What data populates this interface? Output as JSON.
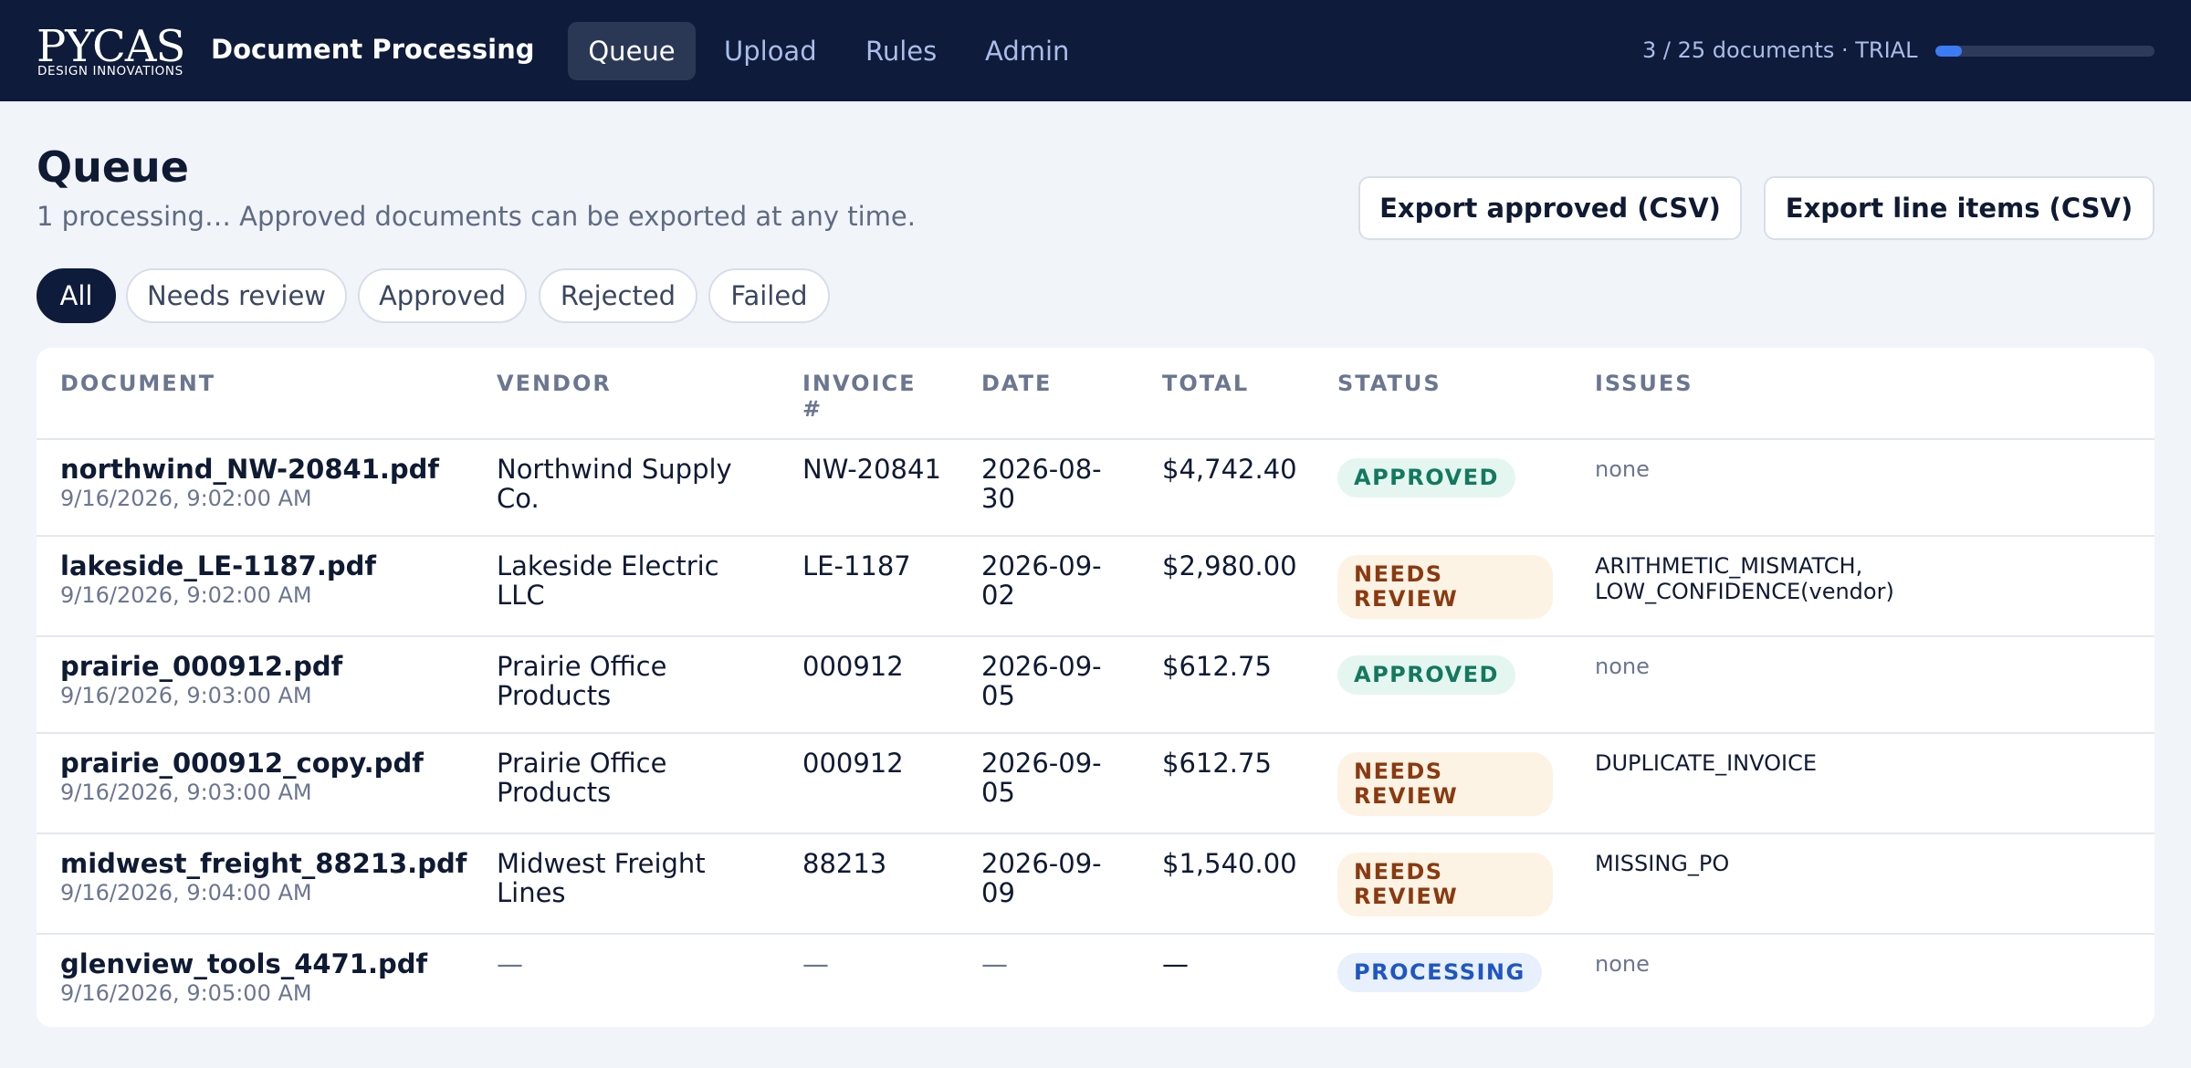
{
  "header": {
    "logo": {
      "wordmark": "PYCAS",
      "tagline": "DESIGN INNOVATIONS"
    },
    "app_title": "Document Processing",
    "nav": [
      {
        "label": "Queue",
        "active": true
      },
      {
        "label": "Upload",
        "active": false
      },
      {
        "label": "Rules",
        "active": false
      },
      {
        "label": "Admin",
        "active": false
      }
    ],
    "usage": {
      "text": "3 / 25 documents · TRIAL",
      "used": 3,
      "limit": 25,
      "fill_fraction": 0.12
    }
  },
  "page": {
    "title": "Queue",
    "subtitle": "1 processing… Approved documents can be exported at any time.",
    "actions": {
      "export_approved": "Export approved (CSV)",
      "export_line_items": "Export line items (CSV)"
    }
  },
  "filters": [
    {
      "label": "All",
      "active": true
    },
    {
      "label": "Needs review",
      "active": false
    },
    {
      "label": "Approved",
      "active": false
    },
    {
      "label": "Rejected",
      "active": false
    },
    {
      "label": "Failed",
      "active": false
    }
  ],
  "table": {
    "columns": {
      "document": "DOCUMENT",
      "vendor": "VENDOR",
      "invoice": "INVOICE #",
      "date": "DATE",
      "total": "TOTAL",
      "status": "STATUS",
      "issues": "ISSUES"
    },
    "rows": [
      {
        "file": "northwind_NW-20841.pdf",
        "uploaded": "9/16/2026, 9:02:00 AM",
        "vendor": "Northwind Supply Co.",
        "invoice": "NW-20841",
        "date": "2026-08-30",
        "total": "$4,742.40",
        "status": "APPROVED",
        "issues": "none"
      },
      {
        "file": "lakeside_LE-1187.pdf",
        "uploaded": "9/16/2026, 9:02:00 AM",
        "vendor": "Lakeside Electric LLC",
        "invoice": "LE-1187",
        "date": "2026-09-02",
        "total": "$2,980.00",
        "status": "NEEDS REVIEW",
        "issues": "ARITHMETIC_MISMATCH, LOW_CONFIDENCE(vendor)"
      },
      {
        "file": "prairie_000912.pdf",
        "uploaded": "9/16/2026, 9:03:00 AM",
        "vendor": "Prairie Office Products",
        "invoice": "000912",
        "date": "2026-09-05",
        "total": "$612.75",
        "status": "APPROVED",
        "issues": "none"
      },
      {
        "file": "prairie_000912_copy.pdf",
        "uploaded": "9/16/2026, 9:03:00 AM",
        "vendor": "Prairie Office Products",
        "invoice": "000912",
        "date": "2026-09-05",
        "total": "$612.75",
        "status": "NEEDS REVIEW",
        "issues": "DUPLICATE_INVOICE"
      },
      {
        "file": "midwest_freight_88213.pdf",
        "uploaded": "9/16/2026, 9:04:00 AM",
        "vendor": "Midwest Freight Lines",
        "invoice": "88213",
        "date": "2026-09-09",
        "total": "$1,540.00",
        "status": "NEEDS REVIEW",
        "issues": "MISSING_PO"
      },
      {
        "file": "glenview_tools_4471.pdf",
        "uploaded": "9/16/2026, 9:05:00 AM",
        "vendor": "—",
        "invoice": "—",
        "date": "—",
        "total": "—",
        "status": "PROCESSING",
        "issues": "none"
      }
    ]
  }
}
